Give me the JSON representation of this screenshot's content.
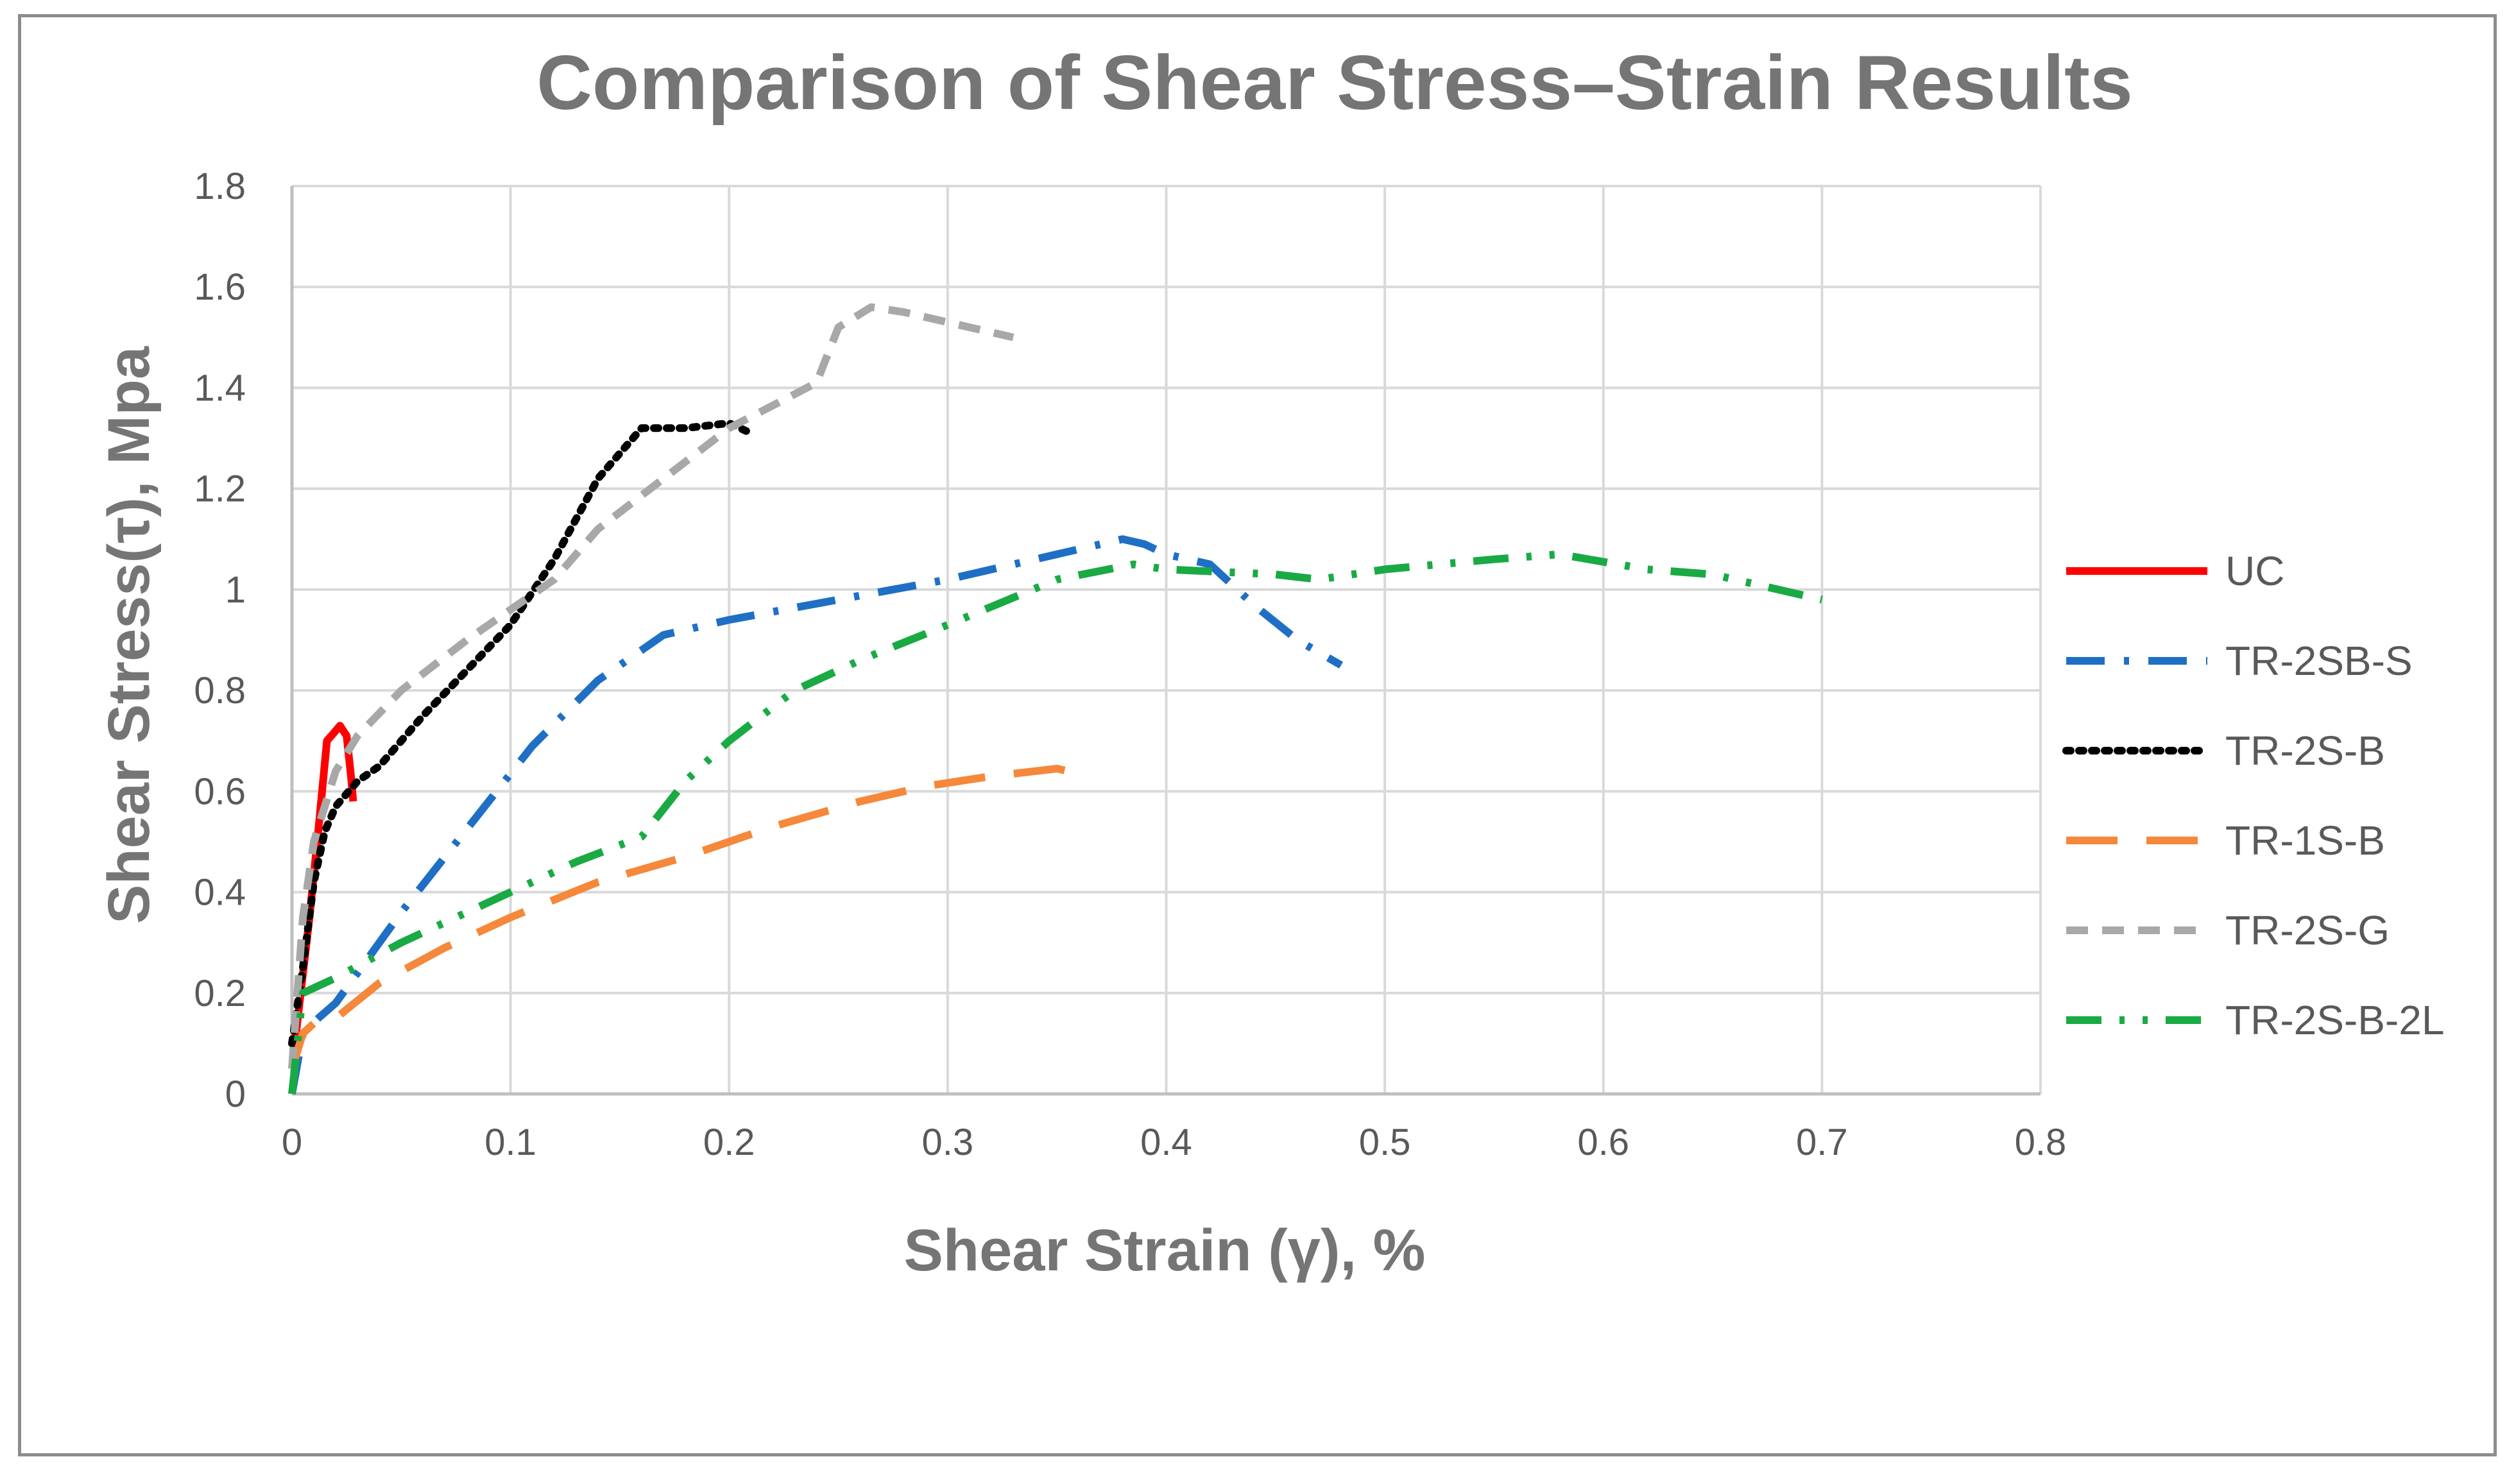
{
  "chart_data": {
    "type": "line",
    "title": "Comparison of Shear Stress–Strain Results",
    "xlabel": "Shear Strain (γ),  %",
    "ylabel": "Shear Stress(τ),  Mpa",
    "xlim": [
      0,
      0.8
    ],
    "ylim": [
      0,
      1.8
    ],
    "x_ticks": [
      0,
      0.1,
      0.2,
      0.3,
      0.4,
      0.5,
      0.6,
      0.7,
      0.8
    ],
    "x_tick_labels": [
      "0",
      "0.1",
      "0.2",
      "0.3",
      "0.4",
      "0.5",
      "0.6",
      "0.7",
      "0.8"
    ],
    "y_ticks": [
      0,
      0.2,
      0.4,
      0.6,
      0.8,
      1.0,
      1.2,
      1.4,
      1.6,
      1.8
    ],
    "y_tick_labels": [
      "0",
      "0.2",
      "0.4",
      "0.6",
      "0.8",
      "1",
      "1.2",
      "1.4",
      "1.6",
      "1.8"
    ],
    "grid": true,
    "legend_position": "right",
    "series": [
      {
        "name": "UC",
        "color": "#ff0000",
        "dash": "solid",
        "x": [
          0,
          0.004,
          0.008,
          0.012,
          0.016,
          0.018,
          0.022,
          0.025,
          0.027,
          0.028
        ],
        "y": [
          0.05,
          0.2,
          0.35,
          0.52,
          0.7,
          0.71,
          0.73,
          0.71,
          0.63,
          0.58
        ]
      },
      {
        "name": "TR-2SB-S",
        "color": "#1f6fc5",
        "dash": "dashdot",
        "x": [
          0,
          0.005,
          0.012,
          0.02,
          0.03,
          0.05,
          0.07,
          0.09,
          0.11,
          0.14,
          0.17,
          0.2,
          0.25,
          0.3,
          0.35,
          0.38,
          0.39,
          0.4,
          0.42,
          0.44,
          0.46,
          0.48
        ],
        "y": [
          0.0,
          0.12,
          0.15,
          0.18,
          0.24,
          0.36,
          0.47,
          0.58,
          0.69,
          0.82,
          0.91,
          0.94,
          0.98,
          1.02,
          1.07,
          1.1,
          1.09,
          1.07,
          1.05,
          0.97,
          0.9,
          0.85
        ]
      },
      {
        "name": "TR-2S-B",
        "color": "#000000",
        "dash": "dotted",
        "x": [
          0,
          0.005,
          0.01,
          0.015,
          0.02,
          0.03,
          0.04,
          0.06,
          0.08,
          0.1,
          0.12,
          0.14,
          0.16,
          0.18,
          0.2,
          0.21
        ],
        "y": [
          0.1,
          0.25,
          0.42,
          0.52,
          0.57,
          0.62,
          0.65,
          0.75,
          0.84,
          0.93,
          1.06,
          1.22,
          1.32,
          1.32,
          1.33,
          1.31
        ]
      },
      {
        "name": "TR-1S-B",
        "color": "#f5883a",
        "dash": "longdash",
        "x": [
          0,
          0.005,
          0.01,
          0.02,
          0.04,
          0.07,
          0.1,
          0.14,
          0.18,
          0.22,
          0.26,
          0.29,
          0.32,
          0.35,
          0.365
        ],
        "y": [
          0.05,
          0.12,
          0.14,
          0.15,
          0.22,
          0.29,
          0.35,
          0.42,
          0.47,
          0.53,
          0.58,
          0.61,
          0.63,
          0.645,
          0.63
        ]
      },
      {
        "name": "TR-2S-G",
        "color": "#a8a8a8",
        "dash": "dashed",
        "x": [
          0,
          0.005,
          0.01,
          0.02,
          0.03,
          0.05,
          0.08,
          0.1,
          0.12,
          0.14,
          0.17,
          0.2,
          0.24,
          0.25,
          0.265,
          0.28,
          0.3,
          0.33
        ],
        "y": [
          0.05,
          0.35,
          0.5,
          0.64,
          0.71,
          0.8,
          0.9,
          0.96,
          1.02,
          1.12,
          1.22,
          1.32,
          1.41,
          1.52,
          1.56,
          1.55,
          1.53,
          1.5
        ]
      },
      {
        "name": "TR-2S-B-2L",
        "color": "#1aaa44",
        "dash": "dashdotdot",
        "x": [
          0,
          0.005,
          0.02,
          0.05,
          0.08,
          0.11,
          0.13,
          0.16,
          0.18,
          0.2,
          0.23,
          0.26,
          0.3,
          0.35,
          0.385,
          0.4,
          0.45,
          0.47,
          0.5,
          0.55,
          0.58,
          0.62,
          0.65,
          0.7
        ],
        "y": [
          0.0,
          0.2,
          0.23,
          0.3,
          0.36,
          0.42,
          0.46,
          0.51,
          0.62,
          0.7,
          0.8,
          0.86,
          0.93,
          1.02,
          1.05,
          1.04,
          1.03,
          1.02,
          1.04,
          1.06,
          1.07,
          1.04,
          1.03,
          0.98
        ]
      }
    ]
  }
}
